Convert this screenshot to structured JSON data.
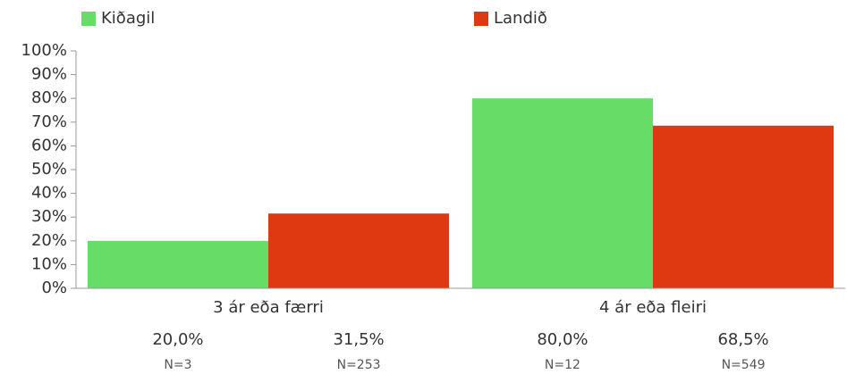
{
  "chart_data": {
    "type": "bar",
    "categories": [
      "3 ár eða færri",
      "4 ár eða fleiri"
    ],
    "series": [
      {
        "name": "Kiðagil",
        "color": "#66dd66",
        "values": [
          20.0,
          80.0
        ],
        "value_labels": [
          "20,0%",
          "80,0%"
        ],
        "n_labels": [
          "N=3",
          "N=12"
        ]
      },
      {
        "name": "Landið",
        "color": "#dd3a12",
        "values": [
          31.5,
          68.5
        ],
        "value_labels": [
          "31,5%",
          "68,5%"
        ],
        "n_labels": [
          "N=253",
          "N=549"
        ]
      }
    ],
    "ylim": [
      0,
      100
    ],
    "yticks": [
      {
        "value": 0,
        "label": "0%"
      },
      {
        "value": 10,
        "label": "10%"
      },
      {
        "value": 20,
        "label": "20%"
      },
      {
        "value": 30,
        "label": "30%"
      },
      {
        "value": 40,
        "label": "40%"
      },
      {
        "value": 50,
        "label": "50%"
      },
      {
        "value": 60,
        "label": "60%"
      },
      {
        "value": 70,
        "label": "70%"
      },
      {
        "value": 80,
        "label": "80%"
      },
      {
        "value": 90,
        "label": "90%"
      },
      {
        "value": 100,
        "label": "100%"
      }
    ],
    "legend": "top"
  }
}
